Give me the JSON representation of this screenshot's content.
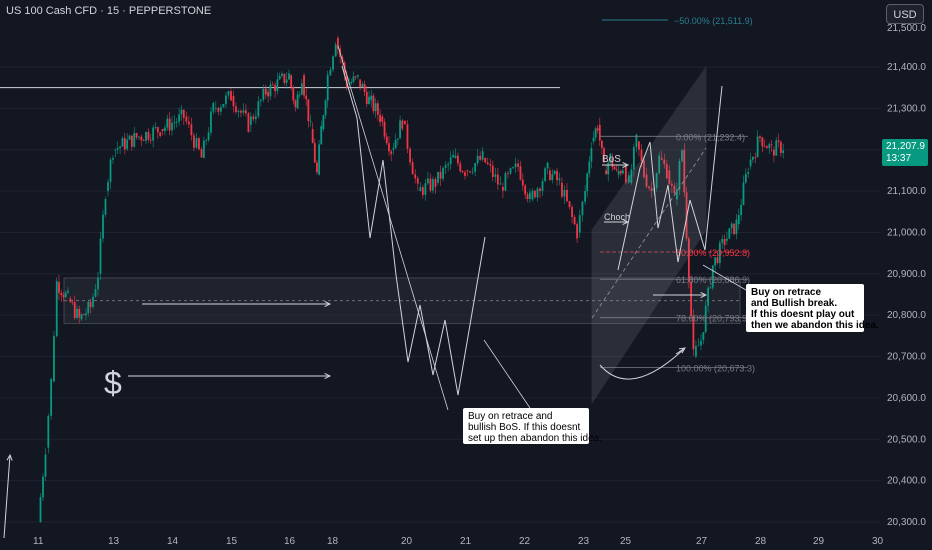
{
  "header": {
    "symbol": "US 100 Cash CFD · 15 · PEPPERSTONE",
    "currency": "USD"
  },
  "price_tag": {
    "price": "21,207.9",
    "countdown": "13:37"
  },
  "colors": {
    "background": "#131722",
    "up_candle": "#089981",
    "down_candle": "#f23645",
    "drawing": "#d1d4dc",
    "fib": "#787b86",
    "fib_ext": "#2a7d8e"
  },
  "chart_data": {
    "type": "candlestick",
    "y_axis": {
      "ylim": [
        20280,
        21560
      ],
      "ticks": [
        20300,
        20400,
        20500,
        20600,
        20700,
        20800,
        20900,
        21000,
        21100,
        21200,
        21300,
        21400
      ],
      "tick_labels": [
        "20,300.0",
        "20,400.0",
        "20,500.0",
        "20,600.0",
        "20,700.0",
        "20,800.0",
        "20,900.0",
        "21,000.0",
        "21,100.0",
        "21,200.0",
        "21,300.0",
        "21,400.0"
      ],
      "partial_top_label": "21,500.0"
    },
    "x_axis": {
      "tick_labels": [
        "11",
        "13",
        "14",
        "15",
        "16",
        "18",
        "20",
        "21",
        "22",
        "23",
        "25",
        "27",
        "28",
        "29",
        "30"
      ]
    },
    "price_path": [
      [
        11,
        20300
      ],
      [
        11.2,
        20480
      ],
      [
        11.35,
        20640
      ],
      [
        11.5,
        20880
      ],
      [
        11.8,
        20840
      ],
      [
        12.1,
        20790
      ],
      [
        12.4,
        20820
      ],
      [
        12.6,
        20900
      ],
      [
        12.8,
        21100
      ],
      [
        13.0,
        21200
      ],
      [
        13.4,
        21230
      ],
      [
        13.8,
        21250
      ],
      [
        14.2,
        21280
      ],
      [
        14.5,
        21180
      ],
      [
        14.7,
        21300
      ],
      [
        15.0,
        21330
      ],
      [
        15.3,
        21260
      ],
      [
        15.6,
        21340
      ],
      [
        16.0,
        21380
      ],
      [
        16.3,
        21300
      ],
      [
        16.6,
        21380
      ],
      [
        17.0,
        21250
      ],
      [
        17.3,
        21140
      ],
      [
        17.5,
        21250
      ],
      [
        17.8,
        21380
      ],
      [
        18.1,
        21470
      ],
      [
        18.4,
        21360
      ],
      [
        18.7,
        21370
      ],
      [
        19.0,
        21320
      ],
      [
        19.3,
        21280
      ],
      [
        19.6,
        21200
      ],
      [
        19.9,
        21270
      ],
      [
        20.2,
        21100
      ],
      [
        20.5,
        21120
      ],
      [
        20.8,
        21180
      ],
      [
        21.0,
        21150
      ],
      [
        21.3,
        21180
      ],
      [
        21.6,
        21110
      ],
      [
        21.9,
        21160
      ],
      [
        22.1,
        21080
      ],
      [
        22.4,
        21150
      ],
      [
        22.6,
        21120
      ],
      [
        22.9,
        21000
      ],
      [
        23.1,
        21100
      ],
      [
        23.4,
        21220
      ],
      [
        23.7,
        21260
      ],
      [
        24.0,
        21150
      ],
      [
        24.3,
        21180
      ],
      [
        24.6,
        21140
      ],
      [
        24.9,
        21160
      ],
      [
        25.1,
        21120
      ],
      [
        25.3,
        21220
      ],
      [
        25.5,
        21140
      ],
      [
        25.7,
        21100
      ],
      [
        25.9,
        21180
      ],
      [
        26.1,
        21150
      ],
      [
        26.3,
        21080
      ],
      [
        26.5,
        21200
      ],
      [
        26.8,
        20700
      ],
      [
        27.0,
        20740
      ],
      [
        27.2,
        20920
      ],
      [
        27.4,
        20980
      ],
      [
        27.6,
        21020
      ],
      [
        27.8,
        21160
      ],
      [
        28.0,
        21230
      ],
      [
        28.2,
        21200
      ],
      [
        28.4,
        21207.9
      ]
    ],
    "annotations": {
      "fib_ext_label": "−50.00% (21,511.9)",
      "fib_levels": [
        {
          "label": "0.00% (21,232.4)",
          "value": 21232.4
        },
        {
          "label": "50.00% (20,952.8)",
          "value": 20952.8
        },
        {
          "label": "61.80% (20,886.9)",
          "value": 20886.9
        },
        {
          "label": "78.60% (20,793.9)",
          "value": 20793.9
        },
        {
          "label": "100.00% (20,673.3)",
          "value": 20673.3
        }
      ],
      "bos": "BoS",
      "choch": "Choch",
      "callout_left": [
        "Buy on retrace and",
        "bullish BoS. If this doesnt",
        "set up then abandon this idea."
      ],
      "callout_right": [
        "Buy on retrace",
        "and Bullish break.",
        "If this doesnt play out",
        "then we abandon this idea."
      ]
    }
  }
}
